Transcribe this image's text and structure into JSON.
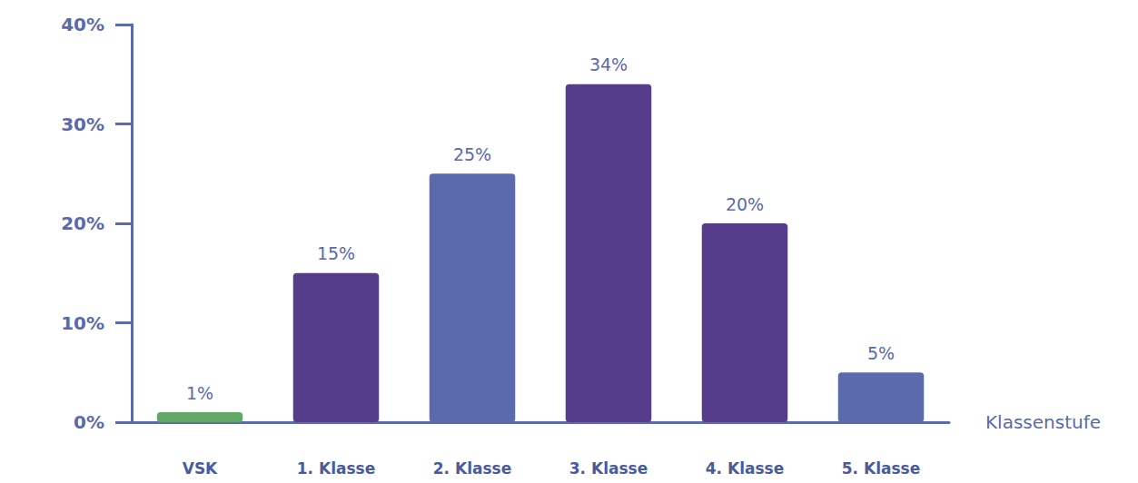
{
  "chart_data": {
    "type": "bar",
    "categories": [
      "VSK",
      "1. Klasse",
      "2. Klasse",
      "3. Klasse",
      "4. Klasse",
      "5. Klasse"
    ],
    "values": [
      1,
      15,
      25,
      34,
      20,
      5
    ],
    "value_labels": [
      "1%",
      "15%",
      "25%",
      "34%",
      "20%",
      "5%"
    ],
    "colors": [
      "#62a866",
      "#553d8c",
      "#5a6aad",
      "#553d8c",
      "#553d8c",
      "#5a6aad"
    ],
    "x_label": "Klassenstufe",
    "ylim": [
      0,
      40
    ],
    "yticks": [
      {
        "value": 0,
        "label": "0%"
      },
      {
        "value": 10,
        "label": "10%"
      },
      {
        "value": 20,
        "label": "20%"
      },
      {
        "value": 30,
        "label": "30%"
      },
      {
        "value": 40,
        "label": "40%"
      }
    ],
    "grid": false,
    "data_labels": true
  }
}
